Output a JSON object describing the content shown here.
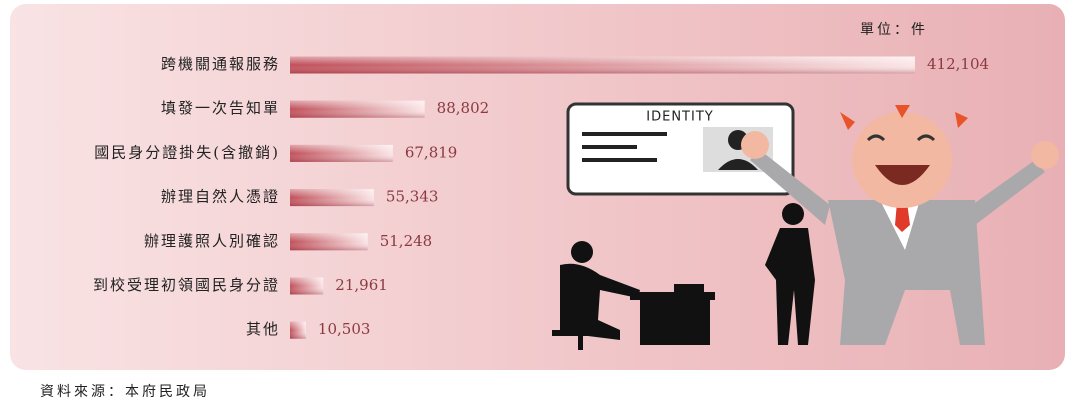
{
  "chart_data": {
    "type": "bar",
    "orientation": "horizontal",
    "unit_label": "單位：件",
    "categories": [
      "跨機關通報服務",
      "填發一次告知單",
      "國民身分證掛失(含撤銷)",
      "辦理自然人憑證",
      "辦理護照人別確認",
      "到校受理初領國民身分證",
      "其他"
    ],
    "values": [
      412104,
      88802,
      67819,
      55343,
      51248,
      21961,
      10503
    ],
    "value_labels": [
      "412,104",
      "88,802",
      "67,819",
      "55,343",
      "51,248",
      "21,961",
      "10,503"
    ],
    "color": "#c0505a",
    "source": "資料來源：本府民政局"
  },
  "illustration": {
    "card_title": "IDENTITY"
  }
}
